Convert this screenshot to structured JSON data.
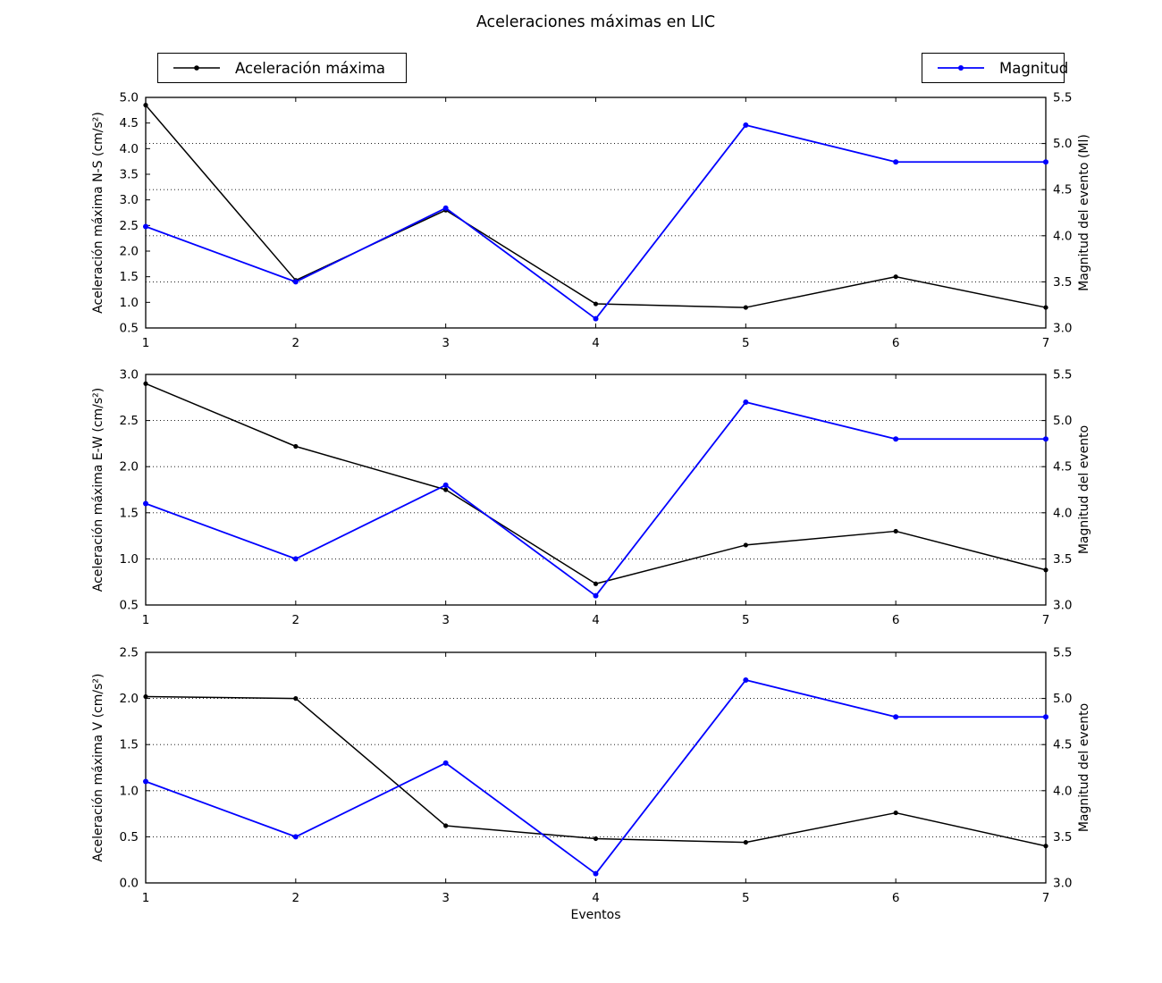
{
  "figure": {
    "title": "Aceleraciones máximas en LIC",
    "xlabel": "Eventos",
    "legends": [
      {
        "label": "Aceleración máxima",
        "color": "#000000"
      },
      {
        "label": "Magnitud",
        "color": "#0000ff"
      }
    ],
    "colors": {
      "acceleration": "#000000",
      "magnitude": "#0000ff",
      "grid": "#000000"
    }
  },
  "chart_data": [
    {
      "id": "ns",
      "type": "line",
      "x": [
        1,
        2,
        3,
        4,
        5,
        6,
        7
      ],
      "xticks": [
        1,
        2,
        3,
        4,
        5,
        6,
        7
      ],
      "ylabel_left": "Aceleración máxima N-S (cm/s²)",
      "ylabel_right": "Magnitud del evento (Ml)",
      "ylim_left": [
        0.5,
        5.0
      ],
      "ylim_right": [
        3.0,
        5.5
      ],
      "yticks_left": [
        0.5,
        1.0,
        1.5,
        2.0,
        2.5,
        3.0,
        3.5,
        4.0,
        4.5,
        5.0
      ],
      "yticks_right": [
        3.0,
        3.5,
        4.0,
        4.5,
        5.0,
        5.5
      ],
      "gridlines_right": [
        3.5,
        4.0,
        4.5,
        5.0
      ],
      "grid_style": "dotted",
      "series": [
        {
          "name": "Aceleración máxima",
          "axis": "left",
          "color": "#000000",
          "values": [
            4.85,
            1.43,
            2.8,
            0.97,
            0.9,
            1.5,
            0.9
          ]
        },
        {
          "name": "Magnitud",
          "axis": "right",
          "color": "#0000ff",
          "values": [
            4.1,
            3.5,
            4.3,
            3.1,
            5.2,
            4.8,
            4.8
          ]
        }
      ]
    },
    {
      "id": "ew",
      "type": "line",
      "x": [
        1,
        2,
        3,
        4,
        5,
        6,
        7
      ],
      "xticks": [
        1,
        2,
        3,
        4,
        5,
        6,
        7
      ],
      "ylabel_left": "Aceleración máxima E-W (cm/s²)",
      "ylabel_right": "Magnitud del evento",
      "ylim_left": [
        0.5,
        3.0
      ],
      "ylim_right": [
        3.0,
        5.5
      ],
      "yticks_left": [
        0.5,
        1.0,
        1.5,
        2.0,
        2.5,
        3.0
      ],
      "yticks_right": [
        3.0,
        3.5,
        4.0,
        4.5,
        5.0,
        5.5
      ],
      "gridlines_right": [
        3.5,
        4.0,
        4.5,
        5.0
      ],
      "grid_style": "dotted",
      "series": [
        {
          "name": "Aceleración máxima",
          "axis": "left",
          "color": "#000000",
          "values": [
            2.9,
            2.22,
            1.75,
            0.73,
            1.15,
            1.3,
            0.88
          ]
        },
        {
          "name": "Magnitud",
          "axis": "right",
          "color": "#0000ff",
          "values": [
            4.1,
            3.5,
            4.3,
            3.1,
            5.2,
            4.8,
            4.8
          ]
        }
      ]
    },
    {
      "id": "v",
      "type": "line",
      "x": [
        1,
        2,
        3,
        4,
        5,
        6,
        7
      ],
      "xticks": [
        1,
        2,
        3,
        4,
        5,
        6,
        7
      ],
      "ylabel_left": "Aceleración máxima V (cm/s²)",
      "ylabel_right": "Magnitud del evento",
      "ylim_left": [
        0.0,
        2.5
      ],
      "ylim_right": [
        3.0,
        5.5
      ],
      "yticks_left": [
        0.0,
        0.5,
        1.0,
        1.5,
        2.0,
        2.5
      ],
      "yticks_right": [
        3.0,
        3.5,
        4.0,
        4.5,
        5.0,
        5.5
      ],
      "gridlines_right": [
        3.5,
        4.0,
        4.5,
        5.0
      ],
      "grid_style": "dotted",
      "series": [
        {
          "name": "Aceleración máxima",
          "axis": "left",
          "color": "#000000",
          "values": [
            2.02,
            2.0,
            0.62,
            0.48,
            0.44,
            0.76,
            0.4
          ]
        },
        {
          "name": "Magnitud",
          "axis": "right",
          "color": "#0000ff",
          "values": [
            4.1,
            3.5,
            4.3,
            3.1,
            5.2,
            4.8,
            4.8
          ]
        }
      ]
    }
  ]
}
